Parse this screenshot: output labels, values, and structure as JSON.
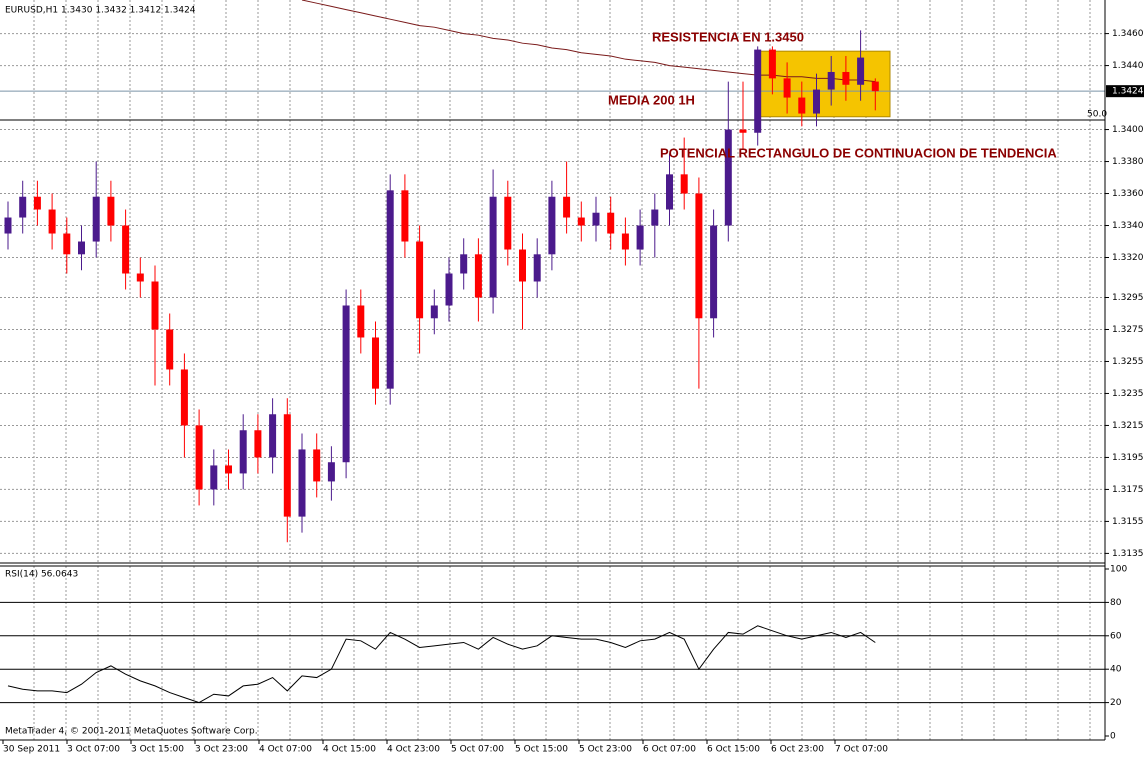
{
  "chart_data": [
    {
      "type": "candlestick",
      "title": "EURUSD,H1  1.3430 1.3432 1.3412 1.3424",
      "up_color": "#4b1a8c",
      "down_color": "#ff0000",
      "open": [
        1.3335,
        1.3345,
        1.3358,
        1.335,
        1.3335,
        1.3322,
        1.333,
        1.3358,
        1.334,
        1.331,
        1.3305,
        1.3275,
        1.325,
        1.3215,
        1.3175,
        1.319,
        1.3185,
        1.3212,
        1.3195,
        1.3222,
        1.3158,
        1.32,
        1.318,
        1.3192,
        1.329,
        1.327,
        1.3238,
        1.3362,
        1.333,
        1.3282,
        1.329,
        1.331,
        1.3322,
        1.3295,
        1.3358,
        1.3325,
        1.3305,
        1.3322,
        1.3358,
        1.3345,
        1.334,
        1.3348,
        1.3335,
        1.3325,
        1.334,
        1.335,
        1.3372,
        1.336,
        1.3282,
        1.334,
        1.34,
        1.3398,
        1.345,
        1.3432,
        1.342,
        1.341,
        1.3425,
        1.3436,
        1.3428,
        1.343
      ],
      "high": [
        1.3355,
        1.3368,
        1.3368,
        1.336,
        1.3345,
        1.334,
        1.338,
        1.3368,
        1.335,
        1.332,
        1.3315,
        1.3285,
        1.326,
        1.3225,
        1.32,
        1.32,
        1.3222,
        1.3222,
        1.3232,
        1.3232,
        1.321,
        1.321,
        1.3202,
        1.33,
        1.33,
        1.328,
        1.3372,
        1.3372,
        1.334,
        1.33,
        1.332,
        1.3332,
        1.3332,
        1.3375,
        1.3368,
        1.3335,
        1.3332,
        1.3368,
        1.338,
        1.3355,
        1.3358,
        1.3358,
        1.3345,
        1.335,
        1.336,
        1.3385,
        1.3395,
        1.337,
        1.335,
        1.343,
        1.343,
        1.3452,
        1.3452,
        1.3442,
        1.343,
        1.3435,
        1.3446,
        1.3446,
        1.3462,
        1.3432
      ],
      "low": [
        1.3325,
        1.3335,
        1.334,
        1.3325,
        1.331,
        1.3312,
        1.332,
        1.333,
        1.33,
        1.3295,
        1.324,
        1.324,
        1.3195,
        1.3165,
        1.3165,
        1.3175,
        1.3175,
        1.3185,
        1.3185,
        1.3142,
        1.3148,
        1.317,
        1.3168,
        1.3182,
        1.326,
        1.3228,
        1.3228,
        1.332,
        1.326,
        1.3272,
        1.328,
        1.33,
        1.328,
        1.3285,
        1.3315,
        1.3275,
        1.3295,
        1.3312,
        1.3335,
        1.333,
        1.333,
        1.3325,
        1.3315,
        1.3315,
        1.332,
        1.334,
        1.335,
        1.3238,
        1.327,
        1.333,
        1.3388,
        1.339,
        1.3422,
        1.341,
        1.3402,
        1.3402,
        1.3415,
        1.3418,
        1.3418,
        1.3412
      ],
      "close": [
        1.3345,
        1.3358,
        1.335,
        1.3335,
        1.3322,
        1.333,
        1.3358,
        1.334,
        1.331,
        1.3305,
        1.3275,
        1.325,
        1.3215,
        1.3175,
        1.319,
        1.3185,
        1.3212,
        1.3195,
        1.3222,
        1.3158,
        1.32,
        1.318,
        1.3192,
        1.329,
        1.327,
        1.3238,
        1.3362,
        1.333,
        1.3282,
        1.329,
        1.331,
        1.3322,
        1.3295,
        1.3358,
        1.3325,
        1.3305,
        1.3322,
        1.3358,
        1.3345,
        1.334,
        1.3348,
        1.3335,
        1.3325,
        1.334,
        1.335,
        1.3372,
        1.336,
        1.3282,
        1.334,
        1.34,
        1.3398,
        1.345,
        1.3432,
        1.342,
        1.341,
        1.3425,
        1.3436,
        1.3428,
        1.3445,
        1.3424
      ],
      "lines": [
        {
          "color": "#7a1a1a",
          "values": [
            null,
            null,
            null,
            null,
            null,
            null,
            null,
            null,
            null,
            null,
            null,
            null,
            null,
            null,
            null,
            null,
            null,
            null,
            null,
            null,
            1.3481,
            1.3479,
            1.3477,
            1.3475,
            1.3473,
            1.3471,
            1.3469,
            1.3467,
            1.3465,
            1.3464,
            1.3462,
            1.346,
            1.3459,
            1.3457,
            1.3456,
            1.3454,
            1.3453,
            1.3451,
            1.345,
            1.3448,
            1.3447,
            1.3446,
            1.3444,
            1.3443,
            1.3442,
            1.344,
            1.3439,
            1.3438,
            1.3437,
            1.3436,
            1.3435,
            1.3434,
            1.3434,
            1.3433,
            1.3433,
            1.3432,
            1.3432,
            1.3431,
            1.3431,
            1.343
          ]
        }
      ],
      "ylim": [
        1.3129,
        1.3481
      ],
      "yticks": [
        {
          "value": 1.346,
          "label": "1.3460"
        },
        {
          "value": 1.344,
          "label": "1.3440"
        },
        {
          "value": 1.34,
          "label": "1.3400"
        },
        {
          "value": 1.338,
          "label": "1.3380"
        },
        {
          "value": 1.336,
          "label": "1.3360"
        },
        {
          "value": 1.334,
          "label": "1.3340"
        },
        {
          "value": 1.332,
          "label": "1.3320"
        },
        {
          "value": 1.3295,
          "label": "1.3295"
        },
        {
          "value": 1.3275,
          "label": "1.3275"
        },
        {
          "value": 1.3255,
          "label": "1.3255"
        },
        {
          "value": 1.3235,
          "label": "1.3235"
        },
        {
          "value": 1.3215,
          "label": "1.3215"
        },
        {
          "value": 1.3195,
          "label": "1.3195"
        },
        {
          "value": 1.3175,
          "label": "1.3175"
        },
        {
          "value": 1.3155,
          "label": "1.3155"
        },
        {
          "value": 1.3135,
          "label": "1.3135"
        }
      ],
      "grid": true,
      "bid": {
        "value": 1.3424,
        "label": "1.3424"
      },
      "level": {
        "value": 1.3406,
        "label": "50.0"
      },
      "rectangle": {
        "low": 1.3408,
        "high": 1.3449,
        "color": "#f5c400"
      },
      "annotations": [
        "RESISTENCIA EN 1.3450",
        "MEDIA 200 1H",
        "POTENCIAL RECTANGULO DE CONTINUACION DE TENDENCIA"
      ],
      "annotation_color": "#8b0000"
    },
    {
      "type": "line",
      "title": "RSI(14) 56.0643",
      "color": "#000000",
      "values": [
        30,
        28,
        27,
        27,
        26,
        31,
        38,
        42,
        37,
        33,
        30,
        26,
        23,
        20,
        25,
        24,
        30,
        31,
        35,
        27,
        36,
        35,
        40,
        58,
        57,
        52,
        62,
        58,
        53,
        54,
        55,
        56,
        52,
        59,
        55,
        52,
        54,
        60,
        59,
        58,
        58,
        56,
        53,
        57,
        58,
        62,
        58,
        40,
        52,
        62,
        61,
        66,
        63,
        60,
        58,
        60,
        62,
        59,
        62,
        56
      ],
      "ylim": [
        0,
        100
      ],
      "yticks": [
        100,
        80,
        60,
        40,
        20,
        0
      ],
      "levels": [
        80,
        60,
        40,
        20
      ],
      "time_labels": [
        "30 Sep 2011",
        "3 Oct 07:00",
        "3 Oct 15:00",
        "3 Oct 23:00",
        "4 Oct 07:00",
        "4 Oct 15:00",
        "4 Oct 23:00",
        "5 Oct 07:00",
        "5 Oct 15:00",
        "5 Oct 23:00",
        "6 Oct 07:00",
        "6 Oct 15:00",
        "6 Oct 23:00",
        "7 Oct 07:00"
      ],
      "footer": "MetaTrader 4, © 2001-2011 MetaQuotes Software Corp."
    }
  ]
}
